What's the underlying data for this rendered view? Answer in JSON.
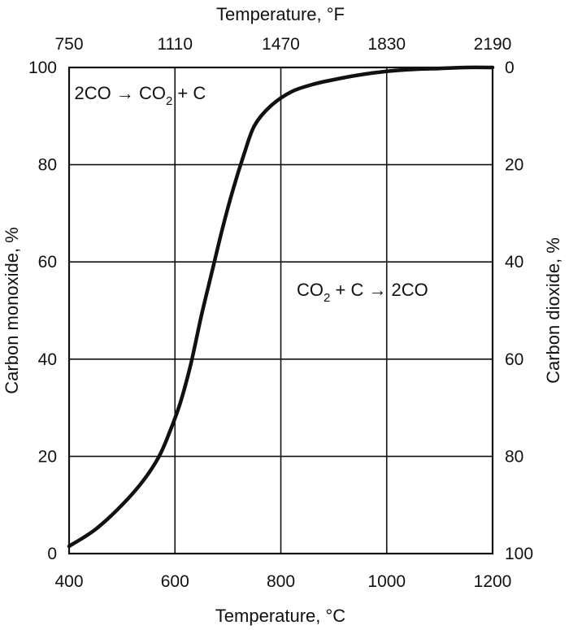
{
  "chart_data": {
    "type": "line",
    "xlabel": "Temperature, °C",
    "x2label": "Temperature, °F",
    "ylabel": "Carbon monoxide, %",
    "y2label": "Carbon dioxide, %",
    "xlim": [
      400,
      1200
    ],
    "ylim": [
      0,
      100
    ],
    "x_ticks": [
      "400",
      "600",
      "800",
      "1000",
      "1200"
    ],
    "x2_ticks": [
      "750",
      "1110",
      "1470",
      "1830",
      "2190"
    ],
    "y_ticks": [
      "0",
      "20",
      "40",
      "60",
      "80",
      "100"
    ],
    "y2_ticks": [
      "100",
      "80",
      "60",
      "40",
      "20",
      "0"
    ],
    "grid": true,
    "annotations": [
      {
        "pre": "2CO → CO",
        "sub": "2",
        "post": " + C",
        "x": 410,
        "y": 93.5
      },
      {
        "pre": "CO",
        "sub": "2",
        "post": " + C → 2CO",
        "x": 830,
        "y": 53
      }
    ],
    "series": [
      {
        "x": [
          400,
          450,
          500,
          540,
          570,
          590,
          610,
          630,
          650,
          670,
          690,
          710,
          730,
          750,
          780,
          820,
          860,
          900,
          950,
          1000,
          1050,
          1100,
          1150,
          1200
        ],
        "y": [
          1.5,
          5,
          10,
          15,
          20,
          25,
          31,
          39,
          49,
          58,
          67,
          75,
          82,
          88,
          92,
          95,
          96.5,
          97.5,
          98.5,
          99.2,
          99.6,
          99.8,
          100,
          100
        ]
      }
    ]
  }
}
